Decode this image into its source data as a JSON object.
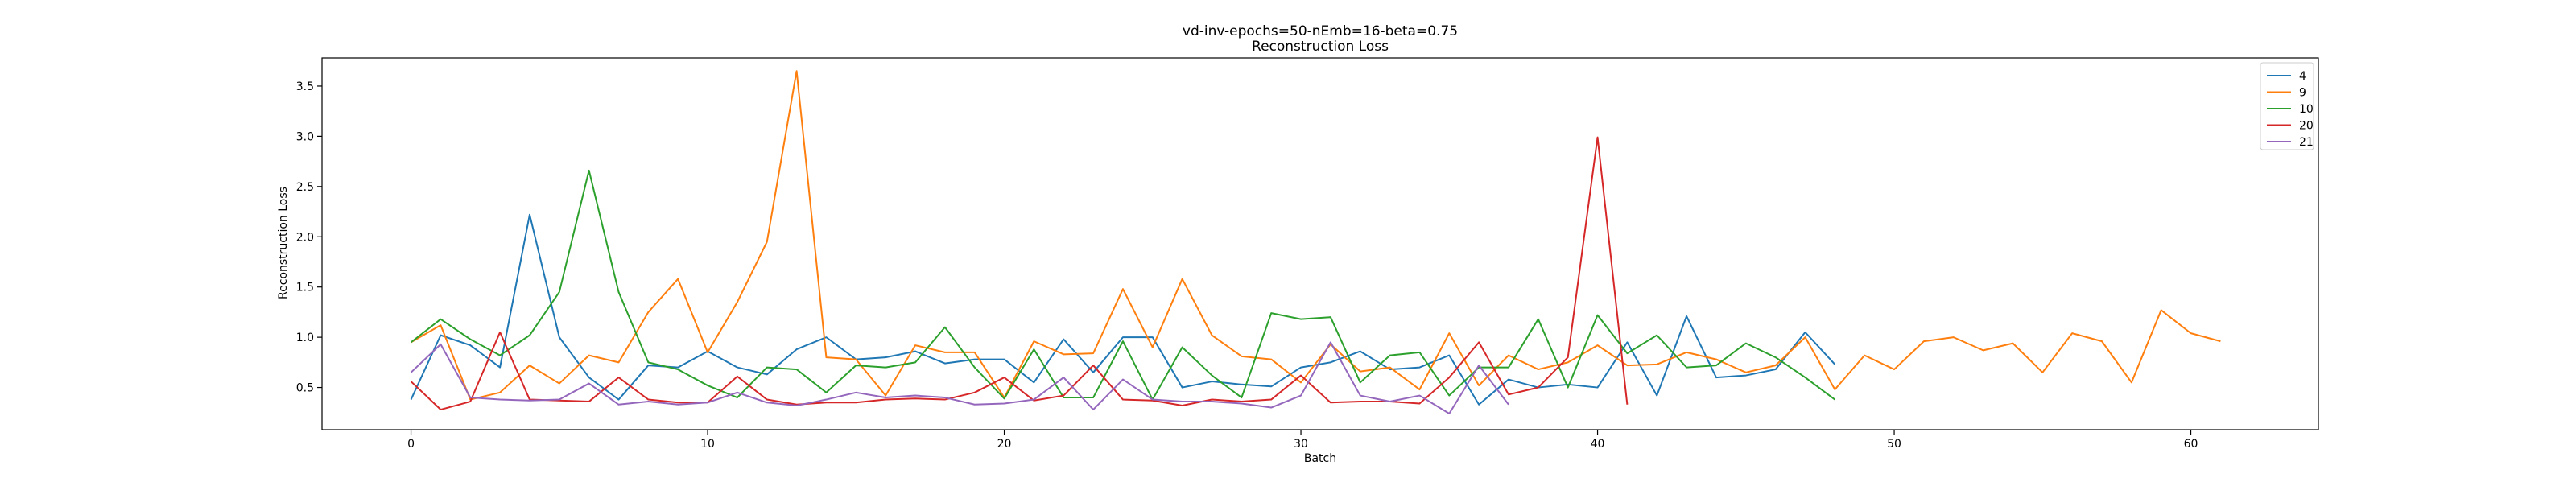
{
  "chart_data": {
    "type": "line",
    "title": "vd-inv-epochs=50-nEmb=16-beta=0.75",
    "subtitle": "Reconstruction Loss",
    "xlabel": "Batch",
    "ylabel": "Reconstruction Loss",
    "xlim": [
      -3,
      64.3
    ],
    "ylim": [
      0.08,
      3.78
    ],
    "x_ticks": [
      0,
      10,
      20,
      30,
      40,
      50,
      60
    ],
    "y_ticks": [
      0.5,
      1.0,
      1.5,
      2.0,
      2.5,
      3.0,
      3.5
    ],
    "grid": false,
    "legend_position": "top-right",
    "series": [
      {
        "name": "4",
        "color": "#1f77b4",
        "values": [
          0.38,
          1.02,
          0.92,
          0.7,
          2.22,
          1.0,
          0.6,
          0.38,
          0.72,
          0.7,
          0.86,
          0.7,
          0.63,
          0.88,
          1.0,
          0.78,
          0.8,
          0.86,
          0.74,
          0.78,
          0.78,
          0.55,
          0.98,
          0.65,
          1.0,
          1.0,
          0.5,
          0.56,
          0.53,
          0.51,
          0.7,
          0.75,
          0.86,
          0.68,
          0.7,
          0.82,
          0.33,
          0.58,
          0.5,
          0.53,
          0.5,
          0.95,
          0.42,
          1.21,
          0.6,
          0.62,
          0.68,
          1.05,
          0.73
        ]
      },
      {
        "name": "9",
        "color": "#ff7f0e",
        "values": [
          0.95,
          1.12,
          0.38,
          0.45,
          0.72,
          0.54,
          0.82,
          0.75,
          1.25,
          1.58,
          0.85,
          1.35,
          1.95,
          3.65,
          0.8,
          0.78,
          0.42,
          0.92,
          0.85,
          0.85,
          0.4,
          0.96,
          0.83,
          0.84,
          1.48,
          0.9,
          1.58,
          1.02,
          0.81,
          0.78,
          0.55,
          0.93,
          0.66,
          0.7,
          0.48,
          1.04,
          0.52,
          0.82,
          0.68,
          0.75,
          0.92,
          0.72,
          0.73,
          0.85,
          0.78,
          0.65,
          0.72,
          1.0,
          0.48,
          0.82,
          0.68,
          0.96,
          1.0,
          0.87,
          0.94,
          0.65,
          1.04,
          0.96,
          0.55,
          1.27,
          1.04,
          0.96
        ]
      },
      {
        "name": "10",
        "color": "#2ca02c",
        "values": [
          0.95,
          1.18,
          0.98,
          0.82,
          1.02,
          1.45,
          2.66,
          1.45,
          0.75,
          0.68,
          0.52,
          0.4,
          0.7,
          0.68,
          0.45,
          0.72,
          0.7,
          0.75,
          1.1,
          0.7,
          0.39,
          0.88,
          0.4,
          0.4,
          0.96,
          0.38,
          0.9,
          0.62,
          0.4,
          1.24,
          1.18,
          1.2,
          0.55,
          0.82,
          0.85,
          0.42,
          0.7,
          0.7,
          1.18,
          0.5,
          1.22,
          0.84,
          1.02,
          0.7,
          0.72,
          0.94,
          0.8,
          0.6,
          0.38
        ]
      },
      {
        "name": "20",
        "color": "#d62728",
        "values": [
          0.56,
          0.28,
          0.36,
          1.05,
          0.38,
          0.37,
          0.36,
          0.6,
          0.38,
          0.35,
          0.35,
          0.61,
          0.38,
          0.33,
          0.35,
          0.35,
          0.38,
          0.39,
          0.38,
          0.45,
          0.6,
          0.37,
          0.42,
          0.72,
          0.38,
          0.37,
          0.32,
          0.38,
          0.36,
          0.38,
          0.62,
          0.35,
          0.36,
          0.36,
          0.34,
          0.6,
          0.95,
          0.43,
          0.5,
          0.8,
          2.99,
          0.33
        ]
      },
      {
        "name": "21",
        "color": "#9467bd",
        "values": [
          0.65,
          0.93,
          0.4,
          0.38,
          0.37,
          0.38,
          0.54,
          0.33,
          0.36,
          0.33,
          0.35,
          0.45,
          0.35,
          0.32,
          0.38,
          0.45,
          0.4,
          0.42,
          0.4,
          0.33,
          0.34,
          0.38,
          0.6,
          0.28,
          0.58,
          0.38,
          0.36,
          0.36,
          0.34,
          0.3,
          0.42,
          0.95,
          0.42,
          0.36,
          0.42,
          0.24,
          0.72,
          0.33
        ]
      }
    ]
  }
}
